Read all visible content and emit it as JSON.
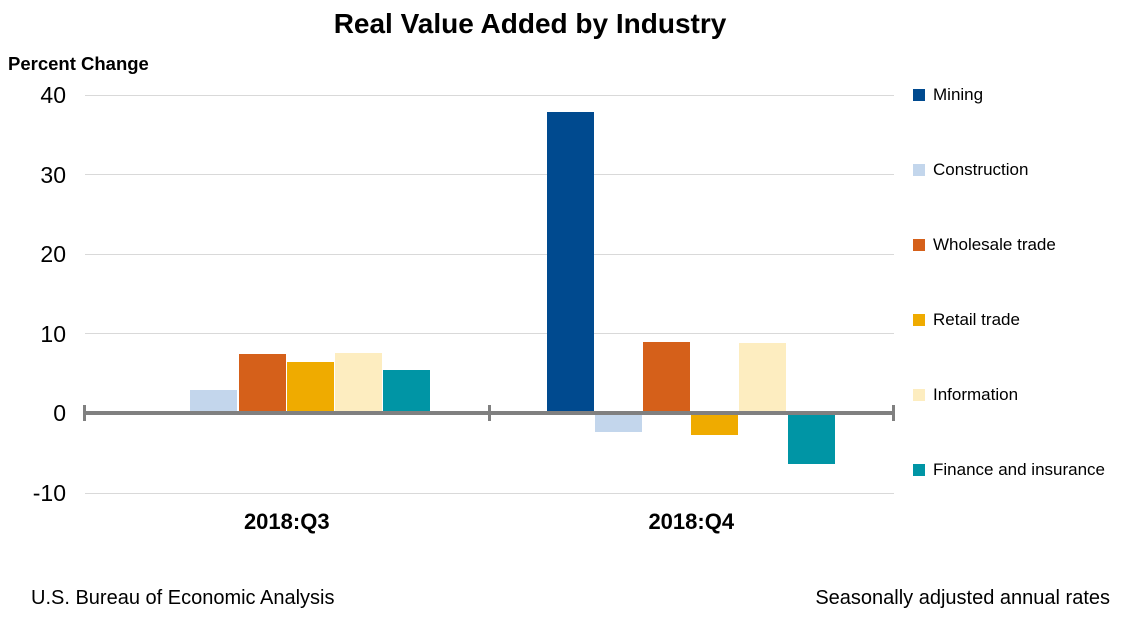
{
  "chart_data": {
    "type": "bar",
    "title": "Real Value Added by Industry",
    "ylabel": "Percent Change",
    "categories": [
      "2018:Q3",
      "2018:Q4"
    ],
    "series": [
      {
        "name": "Mining",
        "color": "#004A8F",
        "values": [
          0.0,
          37.9
        ]
      },
      {
        "name": "Construction",
        "color": "#C3D6EC",
        "values": [
          2.9,
          -2.3
        ]
      },
      {
        "name": "Wholesale trade",
        "color": "#D5601A",
        "values": [
          7.4,
          9.0
        ]
      },
      {
        "name": "Retail trade",
        "color": "#EFAB00",
        "values": [
          6.4,
          -2.7
        ]
      },
      {
        "name": "Information",
        "color": "#FDEDC0",
        "values": [
          7.6,
          8.9
        ]
      },
      {
        "name": "Finance and insurance",
        "color": "#0095A5",
        "values": [
          5.4,
          -6.4
        ]
      }
    ],
    "y_ticks": [
      40,
      30,
      20,
      10,
      0,
      -10
    ],
    "ylim": [
      -10,
      40
    ],
    "grid": true,
    "legend_position": "right"
  },
  "footer": {
    "left": "U.S. Bureau of Economic Analysis",
    "right": "Seasonally adjusted annual rates"
  },
  "colors": {
    "axis_line": "#808080",
    "gridline": "#D9D9D9",
    "background": "#FFFFFF",
    "text": "#000000"
  }
}
